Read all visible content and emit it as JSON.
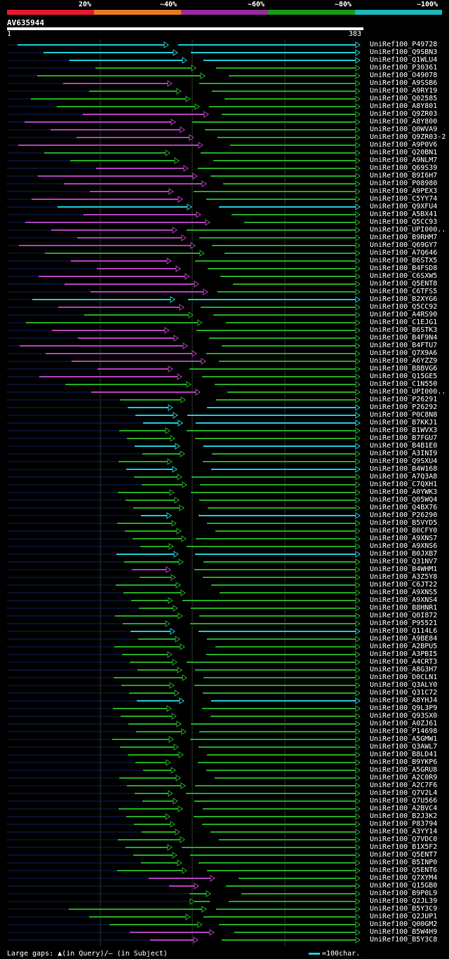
{
  "legend": {
    "labels": [
      "20%",
      "~40%",
      "~60%",
      "~80%",
      "~100%"
    ],
    "colors": [
      "#e8192c",
      "#e87820",
      "#9a2aa0",
      "#1a9a1a",
      "#1ab8c0"
    ]
  },
  "query": {
    "id": "AV635944",
    "start_label": "1",
    "end_label": "383"
  },
  "colors": {
    "cyan": "#1fc8d0",
    "green": "#22a822",
    "magenta": "#b040b8",
    "navy": "#10205a",
    "gap": "#ffff88",
    "grid": "#2a3a2a"
  },
  "hits": [
    {
      "name": "UniRef100_P49728",
      "c": "cyan"
    },
    {
      "name": "UniRef100_Q9SBN3",
      "c": "cyan"
    },
    {
      "name": "UniRef100_Q1WLU4",
      "c": "cyan"
    },
    {
      "name": "UniRef100_P30361",
      "c": "green"
    },
    {
      "name": "UniRef100_O49078",
      "c": "green"
    },
    {
      "name": "UniRef100_A9SSB6",
      "c": "magenta"
    },
    {
      "name": "UniRef100_A9RY19",
      "c": "green"
    },
    {
      "name": "UniRef100_Q02585",
      "c": "green"
    },
    {
      "name": "UniRef100_A8Y801",
      "c": "green"
    },
    {
      "name": "UniRef100_Q9ZR03",
      "c": "magenta"
    },
    {
      "name": "UniRef100_A8Y800",
      "c": "magenta"
    },
    {
      "name": "UniRef100_Q0WVA9",
      "c": "magenta"
    },
    {
      "name": "UniRef100_Q9ZR03-2",
      "c": "magenta"
    },
    {
      "name": "UniRef100_A9P0V6",
      "c": "magenta"
    },
    {
      "name": "UniRef100_Q20BN1",
      "c": "green"
    },
    {
      "name": "UniRef100_A9NLM7",
      "c": "green"
    },
    {
      "name": "UniRef100_Q69S39",
      "c": "magenta"
    },
    {
      "name": "UniRef100_B9I6H7",
      "c": "magenta"
    },
    {
      "name": "UniRef100_P08980",
      "c": "magenta"
    },
    {
      "name": "UniRef100_A9PEX3",
      "c": "magenta"
    },
    {
      "name": "UniRef100_C5YY74",
      "c": "magenta"
    },
    {
      "name": "UniRef100_Q9XFU4",
      "c": "cyan"
    },
    {
      "name": "UniRef100_A5BX41",
      "c": "magenta"
    },
    {
      "name": "UniRef100_Q5CC93",
      "c": "magenta"
    },
    {
      "name": "UniRef100_UPI000..",
      "c": "magenta"
    },
    {
      "name": "UniRef100_B9RHM7",
      "c": "magenta"
    },
    {
      "name": "UniRef100_Q69GY7",
      "c": "magenta"
    },
    {
      "name": "UniRef100_A7Q646",
      "c": "green"
    },
    {
      "name": "UniRef100_B6STX5",
      "c": "magenta"
    },
    {
      "name": "UniRef100_B4FSD8",
      "c": "magenta"
    },
    {
      "name": "UniRef100_C6SXW5",
      "c": "magenta"
    },
    {
      "name": "UniRef100_Q5ENT8",
      "c": "magenta"
    },
    {
      "name": "UniRef100_C6TFS5",
      "c": "magenta"
    },
    {
      "name": "UniRef100_B2XYG6",
      "c": "cyan"
    },
    {
      "name": "UniRef100_Q5CC92",
      "c": "magenta"
    },
    {
      "name": "UniRef100_A4RS90",
      "c": "green"
    },
    {
      "name": "UniRef100_C1EJG1",
      "c": "green"
    },
    {
      "name": "UniRef100_B6STK3",
      "c": "magenta"
    },
    {
      "name": "UniRef100_B4F9N4",
      "c": "magenta"
    },
    {
      "name": "UniRef100_B4FTU7",
      "c": "magenta"
    },
    {
      "name": "UniRef100_Q7X9A6",
      "c": "magenta"
    },
    {
      "name": "UniRef100_A6YZZ9",
      "c": "magenta"
    },
    {
      "name": "UniRef100_B8BVG6",
      "c": "magenta"
    },
    {
      "name": "UniRef100_Q15GE5",
      "c": "magenta"
    },
    {
      "name": "UniRef100_C1N550",
      "c": "green"
    },
    {
      "name": "UniRef100_UPI000..",
      "c": "magenta"
    },
    {
      "name": "UniRef100_P26291",
      "c": "green"
    },
    {
      "name": "UniRef100_P26292",
      "c": "cyan"
    },
    {
      "name": "UniRef100_P0C8N8",
      "c": "cyan"
    },
    {
      "name": "UniRef100_B7KKJ1",
      "c": "cyan"
    },
    {
      "name": "UniRef100_B1WVX3",
      "c": "green"
    },
    {
      "name": "UniRef100_B7FGU7",
      "c": "green"
    },
    {
      "name": "UniRef100_B4B1E0",
      "c": "cyan"
    },
    {
      "name": "UniRef100_A3INI9",
      "c": "green"
    },
    {
      "name": "UniRef100_Q9SXU4",
      "c": "green"
    },
    {
      "name": "UniRef100_B4W168",
      "c": "cyan"
    },
    {
      "name": "UniRef100_A7Q3A8",
      "c": "green"
    },
    {
      "name": "UniRef100_C7QXH1",
      "c": "green"
    },
    {
      "name": "UniRef100_A0YWK3",
      "c": "green"
    },
    {
      "name": "UniRef100_Q05WQ4",
      "c": "green"
    },
    {
      "name": "UniRef100_Q4BX76",
      "c": "green"
    },
    {
      "name": "UniRef100_P26290",
      "c": "cyan"
    },
    {
      "name": "UniRef100_B5VYD5",
      "c": "green"
    },
    {
      "name": "UniRef100_B0CFY0",
      "c": "green"
    },
    {
      "name": "UniRef100_A9XNS7",
      "c": "green"
    },
    {
      "name": "UniRef100_A9XNS6",
      "c": "green"
    },
    {
      "name": "UniRef100_B0JXB7",
      "c": "cyan"
    },
    {
      "name": "UniRef100_Q31NV7",
      "c": "green"
    },
    {
      "name": "UniRef100_B4WHM1",
      "c": "magenta"
    },
    {
      "name": "UniRef100_A3Z5Y8",
      "c": "green"
    },
    {
      "name": "UniRef100_C6JT22",
      "c": "green"
    },
    {
      "name": "UniRef100_A9XNS5",
      "c": "green"
    },
    {
      "name": "UniRef100_A9XNS4",
      "c": "green"
    },
    {
      "name": "UniRef100_B8HNR1",
      "c": "green"
    },
    {
      "name": "UniRef100_Q0I872",
      "c": "green"
    },
    {
      "name": "UniRef100_P95521",
      "c": "green"
    },
    {
      "name": "UniRef100_Q114L6",
      "c": "cyan"
    },
    {
      "name": "UniRef100_A9BE84",
      "c": "green"
    },
    {
      "name": "UniRef100_A2BPU5",
      "c": "green"
    },
    {
      "name": "UniRef100_A3PBI5",
      "c": "green"
    },
    {
      "name": "UniRef100_A4CRT3",
      "c": "green"
    },
    {
      "name": "UniRef100_A8G3H7",
      "c": "green"
    },
    {
      "name": "UniRef100_D0CLN1",
      "c": "green"
    },
    {
      "name": "UniRef100_Q3ALY0",
      "c": "green"
    },
    {
      "name": "UniRef100_Q31C72",
      "c": "green"
    },
    {
      "name": "UniRef100_A8YHJ4",
      "c": "cyan"
    },
    {
      "name": "UniRef100_Q9L3P9",
      "c": "green"
    },
    {
      "name": "UniRef100_Q93SX0",
      "c": "green"
    },
    {
      "name": "UniRef100_A0ZJ61",
      "c": "green"
    },
    {
      "name": "UniRef100_P14698",
      "c": "green"
    },
    {
      "name": "UniRef100_A5GMW1",
      "c": "green"
    },
    {
      "name": "UniRef100_Q3AWL7",
      "c": "green"
    },
    {
      "name": "UniRef100_B8LD41",
      "c": "green"
    },
    {
      "name": "UniRef100_B9YKP6",
      "c": "green"
    },
    {
      "name": "UniRef100_A5GRU8",
      "c": "green"
    },
    {
      "name": "UniRef100_A2C0R9",
      "c": "green"
    },
    {
      "name": "UniRef100_A2C7F6",
      "c": "green"
    },
    {
      "name": "UniRef100_Q7V2L4",
      "c": "green"
    },
    {
      "name": "UniRef100_Q7U566",
      "c": "green"
    },
    {
      "name": "UniRef100_A2BVC4",
      "c": "green"
    },
    {
      "name": "UniRef100_B2J3K2",
      "c": "green"
    },
    {
      "name": "UniRef100_P83794",
      "c": "green"
    },
    {
      "name": "UniRef100_A3YY14",
      "c": "green"
    },
    {
      "name": "UniRef100_Q7VDC0",
      "c": "green"
    },
    {
      "name": "UniRef100_B1X5F2",
      "c": "green"
    },
    {
      "name": "UniRef100_Q5ENT7",
      "c": "green"
    },
    {
      "name": "UniRef100_B5INP0",
      "c": "green"
    },
    {
      "name": "UniRef100_Q5ENT6",
      "c": "green"
    },
    {
      "name": "UniRef100_Q7XYM4",
      "c": "magenta"
    },
    {
      "name": "UniRef100_Q15GB0",
      "c": "magenta"
    },
    {
      "name": "UniRef100_B9P0L9",
      "c": "green"
    },
    {
      "name": "UniRef100_Q2JL39",
      "c": "green"
    },
    {
      "name": "UniRef100_B5Y3C9",
      "c": "green"
    },
    {
      "name": "UniRef100_Q2JUP1",
      "c": "green"
    },
    {
      "name": "UniRef100_Q00GM2",
      "c": "green"
    },
    {
      "name": "UniRef100_B5W4H9",
      "c": "magenta"
    },
    {
      "name": "UniRef100_B5Y3C8",
      "c": "magenta"
    }
  ],
  "footer": {
    "text": "Large gaps: ▲(in Query)/– (in Subject)"
  },
  "scale": {
    "text": "=100char."
  }
}
